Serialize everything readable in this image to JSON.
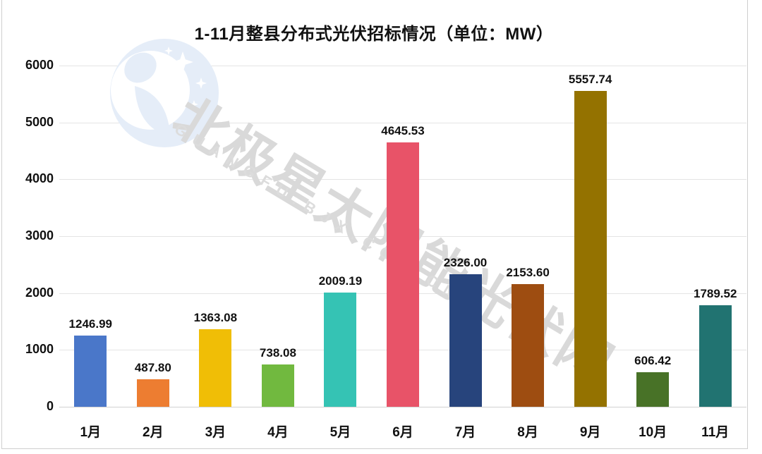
{
  "header": {
    "title": "1-11月整县分布式光伏招标情况（单位：MW）"
  },
  "watermark": {
    "cn_text": "北极星太阳能光伏网",
    "en_text": "GUANGFU.BJX.COM.CN",
    "text_color": "#D9D9D9",
    "logo_color": "#E5EDF8"
  },
  "chart_data": {
    "type": "bar",
    "title": "1-11月整县分布式光伏招标情况（单位：MW）",
    "unit": "MW",
    "categories": [
      "1月",
      "2月",
      "3月",
      "4月",
      "5月",
      "6月",
      "7月",
      "8月",
      "9月",
      "10月",
      "11月"
    ],
    "values": [
      1246.99,
      487.8,
      1363.08,
      738.08,
      2009.19,
      4645.53,
      2326.0,
      2153.6,
      5557.74,
      606.42,
      1789.52
    ],
    "value_labels": [
      "1246.99",
      "487.80",
      "1363.08",
      "738.08",
      "2009.19",
      "4645.53",
      "2326.00",
      "2153.60",
      "5557.74",
      "606.42",
      "1789.52"
    ],
    "bar_colors": [
      "#4A77C9",
      "#ED7D31",
      "#F0BE06",
      "#71B93F",
      "#35C3B4",
      "#E85368",
      "#27447C",
      "#9E4D11",
      "#947200",
      "#487227",
      "#217371"
    ],
    "xlabel": "",
    "ylabel": "",
    "ylim": [
      0,
      6000
    ],
    "yticks": [
      0,
      1000,
      2000,
      3000,
      4000,
      5000,
      6000
    ],
    "grid": true,
    "legend": "none"
  }
}
